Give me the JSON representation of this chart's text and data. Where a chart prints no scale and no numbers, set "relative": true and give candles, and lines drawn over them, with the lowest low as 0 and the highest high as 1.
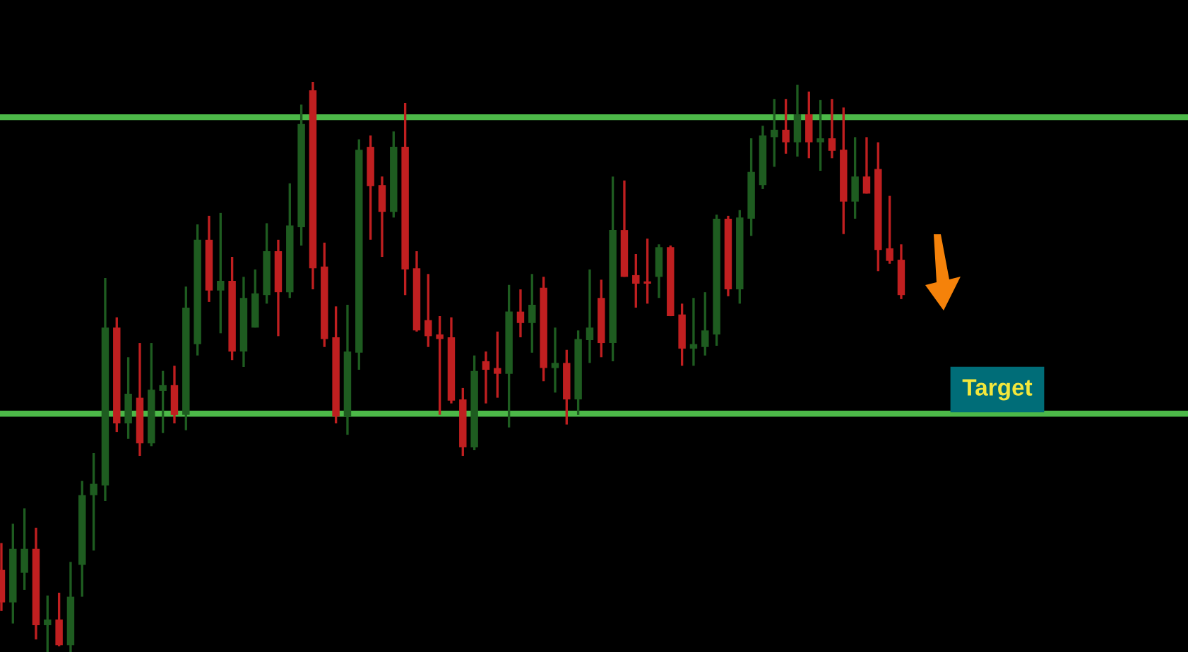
{
  "chart_data": {
    "type": "candlestick",
    "relative": true,
    "categories": [
      null,
      null,
      null,
      null,
      null,
      null,
      null,
      null,
      null,
      null,
      null,
      null,
      null,
      null,
      null,
      null,
      null,
      null,
      null,
      null,
      null,
      null,
      null,
      null,
      null,
      null,
      null,
      null,
      null,
      null,
      null,
      null,
      null,
      null,
      null,
      null,
      null,
      null,
      null,
      null,
      null,
      null,
      null,
      null,
      null,
      null,
      null,
      null,
      null,
      null,
      null,
      null,
      null,
      null,
      null,
      null,
      null,
      null,
      null,
      null,
      null,
      null,
      null,
      null,
      null,
      null,
      null,
      null,
      null,
      null,
      null,
      null,
      null,
      null,
      null,
      null,
      null,
      null,
      null
    ],
    "ohlc": [
      [
        0.144,
        0.191,
        0.072,
        0.087
      ],
      [
        0.087,
        0.225,
        0.05,
        0.181
      ],
      [
        0.139,
        0.252,
        0.109,
        0.181
      ],
      [
        0.181,
        0.218,
        0.022,
        0.047
      ],
      [
        0.047,
        0.099,
        0.0,
        0.057
      ],
      [
        0.057,
        0.104,
        0.01,
        0.012
      ],
      [
        0.012,
        0.158,
        0.0,
        0.097
      ],
      [
        0.153,
        0.3,
        0.097,
        0.275
      ],
      [
        0.275,
        0.349,
        0.178,
        0.295
      ],
      [
        0.292,
        0.656,
        0.265,
        0.569
      ],
      [
        0.569,
        0.587,
        0.386,
        0.401
      ],
      [
        0.401,
        0.517,
        0.374,
        0.453
      ],
      [
        0.446,
        0.542,
        0.344,
        0.366
      ],
      [
        0.366,
        0.542,
        0.361,
        0.46
      ],
      [
        0.458,
        0.493,
        0.384,
        0.468
      ],
      [
        0.468,
        0.502,
        0.401,
        0.416
      ],
      [
        0.416,
        0.641,
        0.389,
        0.604
      ],
      [
        0.54,
        0.75,
        0.52,
        0.723
      ],
      [
        0.723,
        0.765,
        0.614,
        0.634
      ],
      [
        0.634,
        0.77,
        0.559,
        0.651
      ],
      [
        0.651,
        0.693,
        0.512,
        0.527
      ],
      [
        0.527,
        0.658,
        0.5,
        0.621
      ],
      [
        0.569,
        0.671,
        0.569,
        0.629
      ],
      [
        0.626,
        0.752,
        0.611,
        0.703
      ],
      [
        0.703,
        0.723,
        0.554,
        0.631
      ],
      [
        0.631,
        0.822,
        0.621,
        0.748
      ],
      [
        0.745,
        0.96,
        0.713,
        0.926
      ],
      [
        0.985,
        1.0,
        0.636,
        0.673
      ],
      [
        0.676,
        0.718,
        0.535,
        0.549
      ],
      [
        0.552,
        0.606,
        0.401,
        0.413
      ],
      [
        0.413,
        0.609,
        0.381,
        0.527
      ],
      [
        0.525,
        0.899,
        0.495,
        0.881
      ],
      [
        0.886,
        0.906,
        0.723,
        0.817
      ],
      [
        0.819,
        0.834,
        0.693,
        0.772
      ],
      [
        0.772,
        0.913,
        0.762,
        0.886
      ],
      [
        0.886,
        0.963,
        0.626,
        0.671
      ],
      [
        0.673,
        0.703,
        0.562,
        0.564
      ],
      [
        0.582,
        0.663,
        0.535,
        0.554
      ],
      [
        0.557,
        0.589,
        0.416,
        0.549
      ],
      [
        0.552,
        0.587,
        0.436,
        0.441
      ],
      [
        0.443,
        0.463,
        0.344,
        0.359
      ],
      [
        0.359,
        0.52,
        0.354,
        0.493
      ],
      [
        0.51,
        0.527,
        0.436,
        0.495
      ],
      [
        0.498,
        0.562,
        0.446,
        0.488
      ],
      [
        0.488,
        0.644,
        0.394,
        0.597
      ],
      [
        0.597,
        0.636,
        0.552,
        0.577
      ],
      [
        0.577,
        0.663,
        0.525,
        0.609
      ],
      [
        0.639,
        0.658,
        0.475,
        0.498
      ],
      [
        0.498,
        0.569,
        0.455,
        0.507
      ],
      [
        0.507,
        0.53,
        0.399,
        0.443
      ],
      [
        0.443,
        0.564,
        0.416,
        0.549
      ],
      [
        0.547,
        0.671,
        0.507,
        0.569
      ],
      [
        0.621,
        0.653,
        0.517,
        0.542
      ],
      [
        0.542,
        0.834,
        0.51,
        0.74
      ],
      [
        0.74,
        0.827,
        0.658,
        0.658
      ],
      [
        0.661,
        0.698,
        0.604,
        0.646
      ],
      [
        0.649,
        0.725,
        0.611,
        0.646
      ],
      [
        0.658,
        0.715,
        0.621,
        0.71
      ],
      [
        0.71,
        0.713,
        0.589,
        0.589
      ],
      [
        0.592,
        0.611,
        0.502,
        0.532
      ],
      [
        0.532,
        0.621,
        0.502,
        0.54
      ],
      [
        0.535,
        0.631,
        0.52,
        0.564
      ],
      [
        0.557,
        0.767,
        0.537,
        0.76
      ],
      [
        0.76,
        0.765,
        0.624,
        0.636
      ],
      [
        0.636,
        0.775,
        0.611,
        0.762
      ],
      [
        0.76,
        0.901,
        0.73,
        0.842
      ],
      [
        0.819,
        0.923,
        0.812,
        0.906
      ],
      [
        0.903,
        0.97,
        0.851,
        0.916
      ],
      [
        0.916,
        0.97,
        0.874,
        0.894
      ],
      [
        0.894,
        0.995,
        0.869,
        0.943
      ],
      [
        0.943,
        0.983,
        0.866,
        0.894
      ],
      [
        0.894,
        0.968,
        0.844,
        0.901
      ],
      [
        0.901,
        0.97,
        0.866,
        0.879
      ],
      [
        0.881,
        0.955,
        0.733,
        0.79
      ],
      [
        0.79,
        0.903,
        0.76,
        0.834
      ],
      [
        0.834,
        0.903,
        0.804,
        0.804
      ],
      [
        0.847,
        0.894,
        0.668,
        0.705
      ],
      [
        0.708,
        0.8,
        0.681,
        0.686
      ],
      [
        0.688,
        0.715,
        0.619,
        0.626
      ]
    ],
    "colors": [
      "#c01f20",
      "#1e5c20",
      "#1e5c20",
      "#c01f20",
      "#1e5c20",
      "#c01f20",
      "#1e5c20",
      "#1e5c20",
      "#1e5c20",
      "#1e5c20",
      "#c01f20",
      "#1e5c20",
      "#c01f20",
      "#1e5c20",
      "#1e5c20",
      "#c01f20",
      "#1e5c20",
      "#1e5c20",
      "#c01f20",
      "#1e5c20",
      "#c01f20",
      "#1e5c20",
      "#1e5c20",
      "#1e5c20",
      "#c01f20",
      "#1e5c20",
      "#1e5c20",
      "#c01f20",
      "#c01f20",
      "#c01f20",
      "#1e5c20",
      "#1e5c20",
      "#c01f20",
      "#c01f20",
      "#1e5c20",
      "#c01f20",
      "#c01f20",
      "#c01f20",
      "#c01f20",
      "#c01f20",
      "#c01f20",
      "#1e5c20",
      "#c01f20",
      "#c01f20",
      "#1e5c20",
      "#c01f20",
      "#1e5c20",
      "#c01f20",
      "#1e5c20",
      "#c01f20",
      "#1e5c20",
      "#1e5c20",
      "#c01f20",
      "#1e5c20",
      "#c01f20",
      "#c01f20",
      "#c01f20",
      "#1e5c20",
      "#c01f20",
      "#c01f20",
      "#1e5c20",
      "#1e5c20",
      "#1e5c20",
      "#c01f20",
      "#1e5c20",
      "#1e5c20",
      "#1e5c20",
      "#1e5c20",
      "#c01f20",
      "#1e5c20",
      "#c01f20",
      "#1e5c20",
      "#c01f20",
      "#c01f20",
      "#1e5c20",
      "#c01f20",
      "#c01f20",
      "#c01f20",
      "#c01f20"
    ],
    "ref_lines": [
      {
        "axis": "y",
        "value": 0.938,
        "color": "#4cb848"
      },
      {
        "axis": "y",
        "value": 0.418,
        "color": "#4cb848"
      }
    ],
    "annotations": [
      "Target"
    ]
  }
}
